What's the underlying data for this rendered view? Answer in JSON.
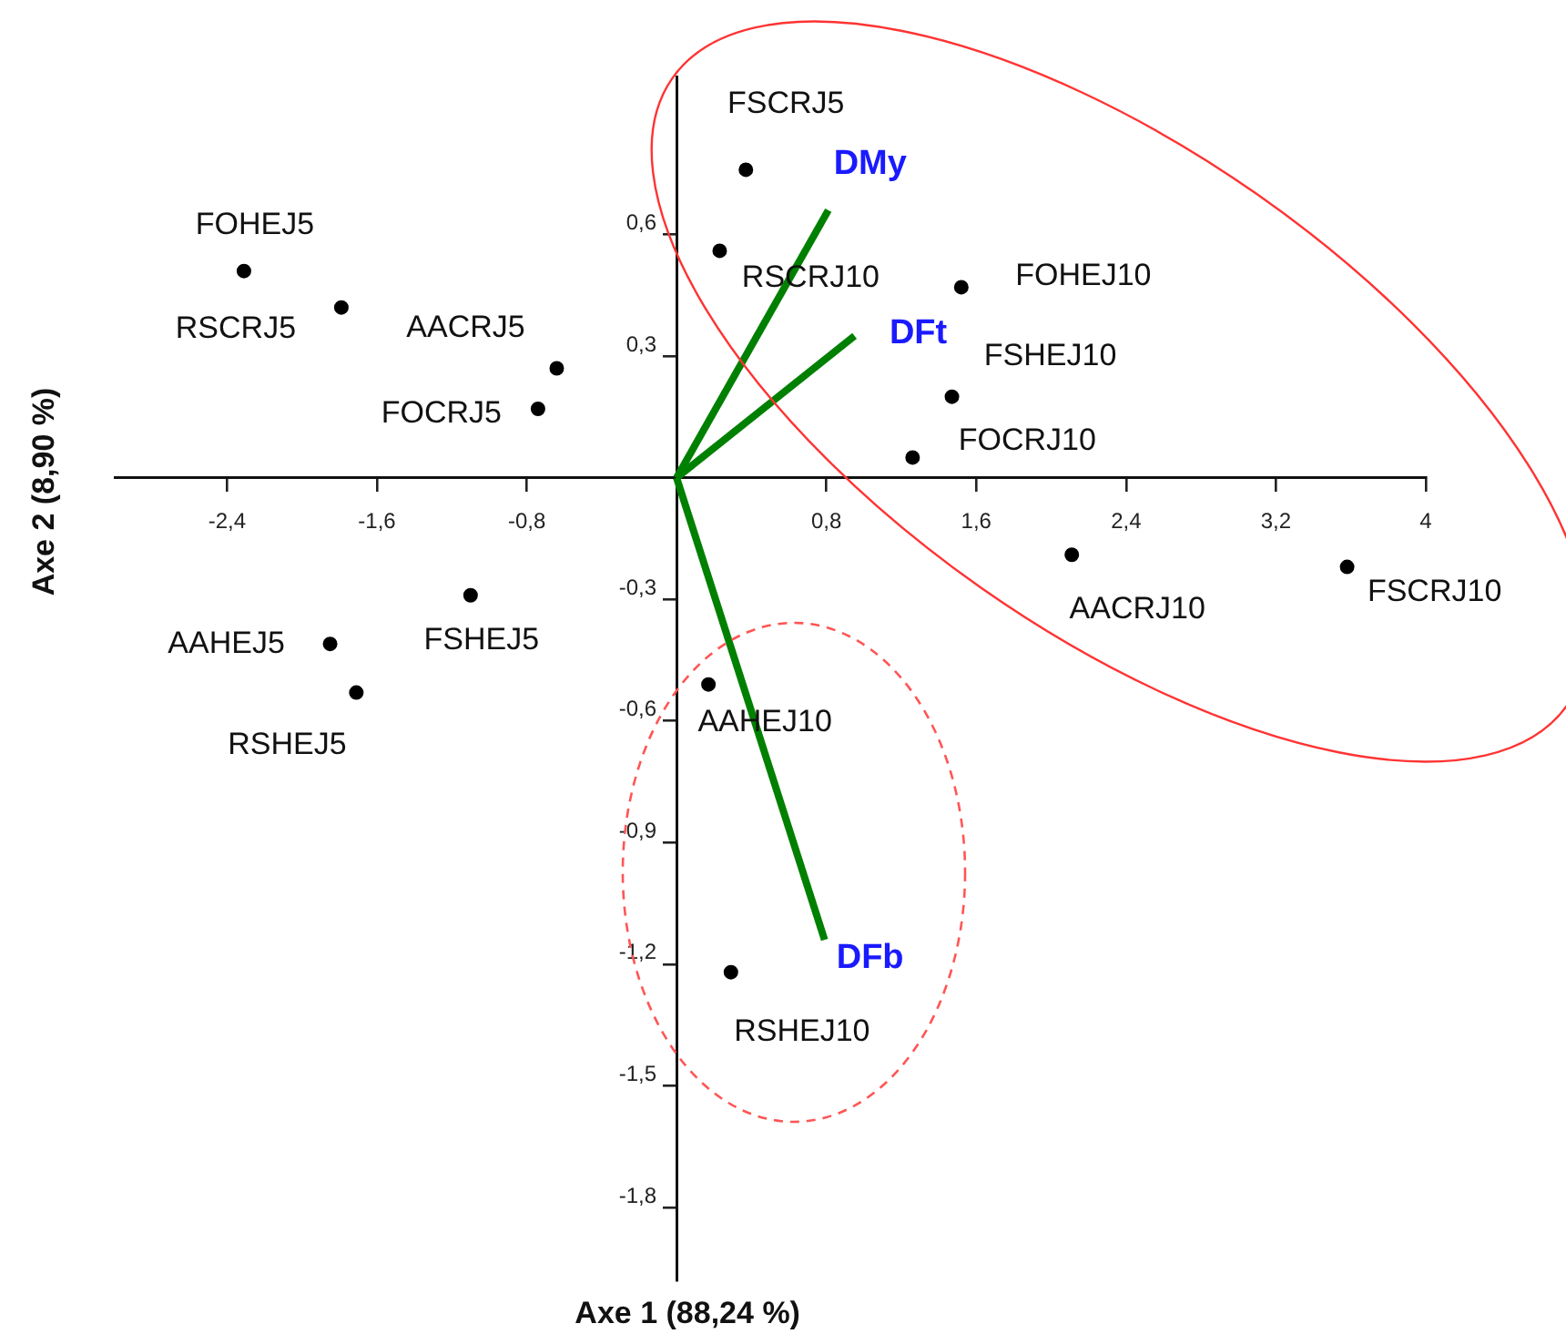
{
  "chart_data": {
    "type": "scatter",
    "xlabel": "Axe 1 (88,24 %)",
    "ylabel": "Axe 2 (8,90 %)",
    "xlim": [
      -3.0,
      4.0
    ],
    "ylim": [
      -1.98,
      0.99
    ],
    "xticks": [
      {
        "value": -2.4,
        "label": "-2,4"
      },
      {
        "value": -1.6,
        "label": "-1,6"
      },
      {
        "value": -0.8,
        "label": "-0,8"
      },
      {
        "value": 0.8,
        "label": "0,8"
      },
      {
        "value": 1.6,
        "label": "1,6"
      },
      {
        "value": 2.4,
        "label": "2,4"
      },
      {
        "value": 3.2,
        "label": "3,2"
      },
      {
        "value": 4,
        "label": "4"
      }
    ],
    "yticks": [
      {
        "value": 0.6,
        "label": "0,6"
      },
      {
        "value": 0.3,
        "label": "0,3"
      },
      {
        "value": -0.3,
        "label": "-0,3"
      },
      {
        "value": -0.6,
        "label": "-0,6"
      },
      {
        "value": -0.9,
        "label": "-0,9"
      },
      {
        "value": -1.2,
        "label": "-1,2"
      },
      {
        "value": -1.5,
        "label": "-1,5"
      },
      {
        "value": -1.8,
        "label": "-1,8"
      }
    ],
    "grid": false,
    "legend": false,
    "series": [
      {
        "type": "scatter",
        "color": "#000000",
        "marker": "circle",
        "x": [
          -2.31,
          -1.79,
          -0.64,
          -0.74,
          -1.1,
          -1.85,
          -1.71,
          0.17,
          0.29,
          0.37,
          0.23,
          1.52,
          1.47,
          1.26,
          2.11,
          3.58
        ],
        "values": [
          0.51,
          0.42,
          0.27,
          0.17,
          -0.29,
          -0.41,
          -0.53,
          -0.51,
          -1.22,
          0.76,
          0.56,
          0.47,
          0.2,
          0.05,
          -0.19,
          -0.22
        ]
      },
      {
        "type": "line",
        "name": "DMy",
        "color": "#008000",
        "marker": "none",
        "x": [
          0,
          0.81
        ],
        "values": [
          0,
          0.66
        ]
      },
      {
        "type": "line",
        "name": "DFt",
        "color": "#008000",
        "marker": "none",
        "x": [
          0,
          0.95
        ],
        "values": [
          0,
          0.35
        ]
      },
      {
        "type": "line",
        "name": "DFb",
        "color": "#008000",
        "marker": "none",
        "x": [
          0,
          0.79
        ],
        "values": [
          0,
          -1.14
        ]
      }
    ],
    "annotations": [
      {
        "text": "FOHEJ5",
        "x": -2.31,
        "y": 0.51
      },
      {
        "text": "RSCRJ5",
        "x": -1.79,
        "y": 0.42
      },
      {
        "text": "AACRJ5",
        "x": -0.64,
        "y": 0.27
      },
      {
        "text": "FOCRJ5",
        "x": -0.74,
        "y": 0.17
      },
      {
        "text": "FSHEJ5",
        "x": -1.1,
        "y": -0.29
      },
      {
        "text": "AAHEJ5",
        "x": -1.85,
        "y": -0.41
      },
      {
        "text": "RSHEJ5",
        "x": -1.71,
        "y": -0.53
      },
      {
        "text": "AAHEJ10",
        "x": 0.17,
        "y": -0.51
      },
      {
        "text": "RSHEJ10",
        "x": 0.29,
        "y": -1.22
      },
      {
        "text": "FSCRJ5",
        "x": 0.37,
        "y": 0.76
      },
      {
        "text": "RSCRJ10",
        "x": 0.23,
        "y": 0.56
      },
      {
        "text": "FOHEJ10",
        "x": 1.52,
        "y": 0.47
      },
      {
        "text": "FSHEJ10",
        "x": 1.47,
        "y": 0.2
      },
      {
        "text": "FOCRJ10",
        "x": 1.26,
        "y": 0.05
      },
      {
        "text": "AACRJ10",
        "x": 2.11,
        "y": -0.19
      },
      {
        "text": "FSCRJ10",
        "x": 3.58,
        "y": -0.22
      }
    ]
  }
}
